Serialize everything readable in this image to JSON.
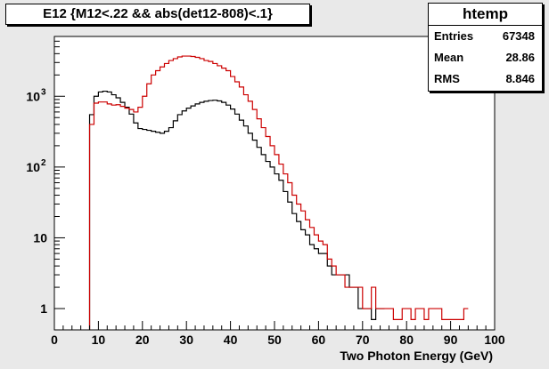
{
  "title": "E12 {M12<.22 && abs(det12-808)<.1}",
  "stats": {
    "name": "htemp",
    "rows": [
      {
        "label": "Entries",
        "value": "67348"
      },
      {
        "label": "Mean",
        "value": "28.86"
      },
      {
        "label": "RMS",
        "value": "8.846"
      }
    ]
  },
  "chart_data": {
    "type": "line",
    "title": "E12 {M12<.22 && abs(det12-808)<.1}",
    "xlabel": "Two Photon Energy (GeV)",
    "ylabel": "",
    "xlim": [
      0,
      100
    ],
    "ylim": [
      0.5,
      7000
    ],
    "ylog": true,
    "x_ticks": [
      "0",
      "10",
      "20",
      "30",
      "40",
      "50",
      "60",
      "70",
      "80",
      "90",
      "100"
    ],
    "y_ticks": [
      {
        "value": 1,
        "label": "1"
      },
      {
        "value": 10,
        "label": "10"
      },
      {
        "value": 100,
        "label": "10",
        "exp": "2"
      },
      {
        "value": 1000,
        "label": "10",
        "exp": "3"
      }
    ],
    "grid": false,
    "series": [
      {
        "color": "#000000",
        "bin_width": 1,
        "start": 8,
        "values": [
          550,
          1000,
          1150,
          1180,
          1150,
          1050,
          950,
          820,
          700,
          560,
          420,
          350,
          340,
          330,
          320,
          310,
          300,
          320,
          360,
          450,
          550,
          620,
          680,
          730,
          780,
          820,
          850,
          870,
          880,
          860,
          820,
          750,
          660,
          560,
          460,
          380,
          300,
          240,
          190,
          150,
          120,
          100,
          80,
          65,
          45,
          32,
          22,
          17,
          13,
          11,
          8,
          7,
          6,
          6,
          4,
          3,
          3,
          3,
          3,
          2,
          2,
          1,
          1,
          1,
          0.7,
          1,
          1
        ]
      },
      {
        "color": "#cc0000",
        "bin_width": 1,
        "start": 8,
        "values": [
          400,
          800,
          830,
          830,
          780,
          750,
          760,
          720,
          680,
          650,
          600,
          700,
          1000,
          1500,
          2000,
          2300,
          2600,
          2900,
          3200,
          3400,
          3600,
          3700,
          3700,
          3650,
          3550,
          3400,
          3200,
          3100,
          2900,
          2700,
          2500,
          2300,
          1900,
          1600,
          1350,
          1050,
          850,
          650,
          480,
          360,
          270,
          200,
          150,
          110,
          80,
          60,
          40,
          30,
          24,
          18,
          14,
          11,
          9,
          8,
          5,
          4,
          3,
          3,
          2,
          2,
          2,
          2,
          1,
          1,
          2,
          1,
          1,
          1,
          1,
          0.7,
          0.7,
          1,
          1,
          0.7,
          1,
          1,
          0.7,
          1,
          1,
          1,
          0.7,
          0.7,
          0.7,
          0.7,
          0.7,
          1
        ]
      }
    ]
  }
}
